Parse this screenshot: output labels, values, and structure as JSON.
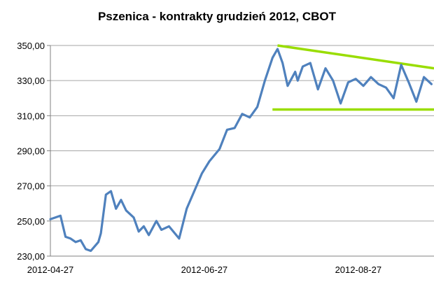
{
  "chart_data": {
    "type": "line",
    "title": "Pszenica - kontrakty grudzień 2012, CBOT",
    "xlabel": "",
    "ylabel": "",
    "ylim": [
      230,
      350
    ],
    "yticks": [
      "230,00",
      "250,00",
      "270,00",
      "290,00",
      "310,00",
      "330,00",
      "350,00"
    ],
    "ytick_values": [
      230,
      250,
      270,
      290,
      310,
      330,
      350
    ],
    "xticks": [
      "2012-04-27",
      "2012-06-27",
      "2012-08-27"
    ],
    "xtick_dates": [
      "2012-04-27",
      "2012-06-27",
      "2012-08-27"
    ],
    "xlim": [
      "2012-04-27",
      "2012-09-26"
    ],
    "grid": "horizontal",
    "legend": "none",
    "colors": {
      "series": "#4f81bd",
      "trend": "#99dd00",
      "grid": "#a6a6a6"
    },
    "series": [
      {
        "x": [
          "2012-04-27",
          "2012-04-29",
          "2012-05-01",
          "2012-05-03",
          "2012-05-05",
          "2012-05-07",
          "2012-05-09",
          "2012-05-11",
          "2012-05-13",
          "2012-05-16",
          "2012-05-17",
          "2012-05-19",
          "2012-05-21",
          "2012-05-23",
          "2012-05-25",
          "2012-05-27",
          "2012-05-30",
          "2012-06-01",
          "2012-06-03",
          "2012-06-05",
          "2012-06-08",
          "2012-06-10",
          "2012-06-13",
          "2012-06-17",
          "2012-06-20",
          "2012-06-23",
          "2012-06-26",
          "2012-06-29",
          "2012-07-03",
          "2012-07-06",
          "2012-07-09",
          "2012-07-12",
          "2012-07-15",
          "2012-07-18",
          "2012-07-21",
          "2012-07-24",
          "2012-07-26",
          "2012-07-28",
          "2012-07-30",
          "2012-08-02",
          "2012-08-03",
          "2012-08-05",
          "2012-08-08",
          "2012-08-11",
          "2012-08-14",
          "2012-08-17",
          "2012-08-20",
          "2012-08-23",
          "2012-08-26",
          "2012-08-29",
          "2012-09-01",
          "2012-09-04",
          "2012-09-07",
          "2012-09-10",
          "2012-09-13",
          "2012-09-16",
          "2012-09-19",
          "2012-09-22",
          "2012-09-25"
        ],
        "values": [
          251,
          252,
          253,
          241,
          240,
          238,
          239,
          234,
          233,
          238,
          243,
          265,
          267,
          257,
          262,
          256,
          252,
          244,
          247,
          242,
          250,
          245,
          247,
          240,
          257,
          267,
          277,
          284,
          291,
          302,
          303,
          311,
          309,
          315,
          330,
          343,
          348,
          340,
          327,
          335,
          330,
          338,
          340,
          325,
          337,
          330,
          317,
          329,
          331,
          327,
          332,
          328,
          326,
          320,
          339,
          329,
          318,
          332,
          328
        ]
      }
    ],
    "trend_lines": [
      {
        "x": [
          "2012-07-26",
          "2012-09-26"
        ],
        "values": [
          350,
          337
        ]
      },
      {
        "x": [
          "2012-07-24",
          "2012-09-26"
        ],
        "values": [
          313.5,
          313.5
        ]
      }
    ]
  }
}
